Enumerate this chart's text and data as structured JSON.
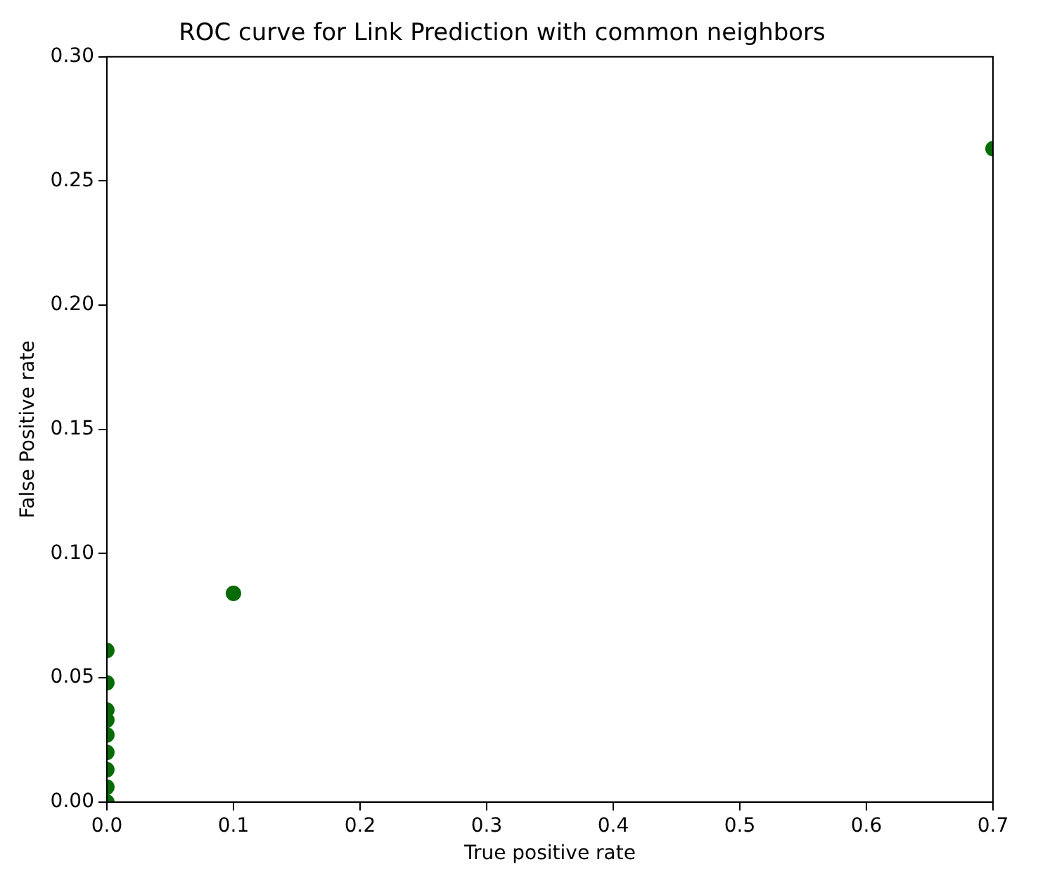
{
  "chart_data": {
    "type": "scatter",
    "title": "ROC curve for Link Prediction with common neighbors",
    "xlabel": "True positive rate",
    "ylabel": "False Positive rate",
    "x": [
      0,
      0,
      0,
      0,
      0,
      0,
      0,
      0,
      0,
      0.1,
      0.7
    ],
    "series": [
      {
        "color": "#086b08",
        "values": [
          0.061,
          0.048,
          0.037,
          0.033,
          0.027,
          0.02,
          0.013,
          0.006,
          0,
          0.084,
          0.263
        ]
      }
    ],
    "xlim": [
      0,
      0.7
    ],
    "ylim": [
      0,
      0.3
    ],
    "xticks": [
      {
        "value": 0,
        "label": "0.0"
      },
      {
        "value": 0.1,
        "label": "0.1"
      },
      {
        "value": 0.2,
        "label": "0.2"
      },
      {
        "value": 0.3,
        "label": "0.3"
      },
      {
        "value": 0.4,
        "label": "0.4"
      },
      {
        "value": 0.5,
        "label": "0.5"
      },
      {
        "value": 0.6,
        "label": "0.6"
      },
      {
        "value": 0.7,
        "label": "0.7"
      }
    ],
    "yticks": [
      {
        "value": 0,
        "label": "0.00"
      },
      {
        "value": 0.05,
        "label": "0.05"
      },
      {
        "value": 0.1,
        "label": "0.10"
      },
      {
        "value": 0.15,
        "label": "0.15"
      },
      {
        "value": 0.2,
        "label": "0.20"
      },
      {
        "value": 0.25,
        "label": "0.25"
      },
      {
        "value": 0.3,
        "label": "0.30"
      }
    ],
    "grid": false,
    "legend": false,
    "marker": "circle"
  }
}
